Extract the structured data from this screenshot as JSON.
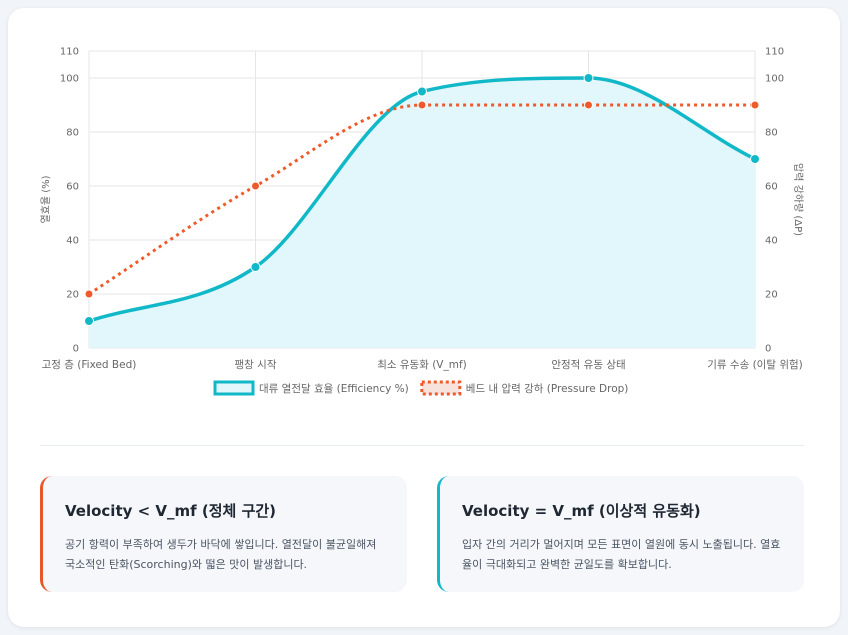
{
  "chart_data": {
    "type": "line",
    "categories": [
      "고정 층 (Fixed Bed)",
      "팽창 시작",
      "최소 유동화 (V_mf)",
      "안정적 유동 상태",
      "기류 수송 (이탈 위험)"
    ],
    "series": [
      {
        "name": "대류 열전달 효율 (Efficiency %)",
        "values": [
          10,
          30,
          95,
          100,
          70
        ],
        "axis": "left",
        "color": "#11b8c7",
        "fill": "#e2f7fb",
        "style": "solid"
      },
      {
        "name": "베드 내 압력 강하 (Pressure Drop)",
        "values": [
          20,
          60,
          90,
          90,
          90
        ],
        "axis": "right",
        "color": "#ef5a2a",
        "style": "dotted"
      }
    ],
    "y_left": {
      "label": "열효율 (%)",
      "ticks": [
        0,
        20,
        40,
        60,
        80,
        100,
        110
      ],
      "range": [
        0,
        110
      ]
    },
    "y_right": {
      "label": "압력 강하량 (ΔP)",
      "ticks": [
        0,
        20,
        40,
        60,
        80,
        100,
        110
      ],
      "range": [
        0,
        110
      ]
    },
    "grid": true,
    "legend_position": "bottom"
  },
  "cards": [
    {
      "title": "Velocity < V_mf (정체 구간)",
      "body": "공기 항력이 부족하여 생두가 바닥에 쌓입니다. 열전달이 불균일해져 국소적인 탄화(Scorching)와 떫은 맛이 발생합니다.",
      "accent": "#e8572a"
    },
    {
      "title": "Velocity = V_mf (이상적 유동화)",
      "body": "입자 간의 거리가 멀어지며 모든 표면이 열원에 동시 노출됩니다. 열효율이 극대화되고 완벽한 균일도를 확보합니다.",
      "accent": "#11b8c7"
    }
  ]
}
